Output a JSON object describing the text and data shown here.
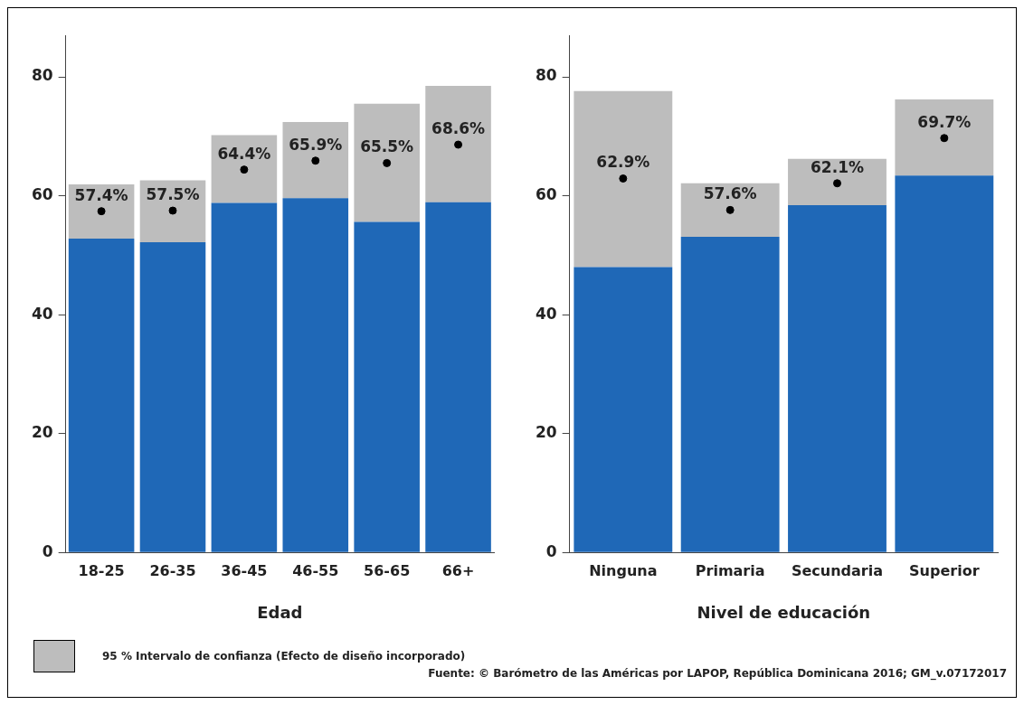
{
  "chart_data": [
    {
      "type": "bar",
      "stacked": true,
      "categories": [
        "18-25",
        "26-35",
        "36-45",
        "46-55",
        "56-65",
        "66+"
      ],
      "xlabel": "Edad",
      "ylim": [
        0,
        87
      ],
      "yticks": [
        0,
        20,
        40,
        60,
        80
      ],
      "grid": false,
      "legend": "bottom left",
      "series": [
        {
          "color": "#1f68b7",
          "values": [
            52.8,
            52.2,
            58.8,
            59.6,
            55.6,
            58.9
          ]
        },
        {
          "name": "95 % Intervalo de confianza (Efecto de diseño incorporado)",
          "color": "#bdbdbd",
          "values": [
            9.1,
            10.4,
            11.4,
            12.8,
            19.9,
            19.6
          ]
        },
        {
          "type": "scatter",
          "color": "#000000",
          "marker": "circle",
          "x": [
            "18-25",
            "26-35",
            "36-45",
            "46-55",
            "56-65",
            "66+"
          ],
          "values": [
            57.4,
            57.5,
            64.4,
            65.9,
            65.5,
            68.6
          ],
          "value_labels": [
            "57.4%",
            "57.5%",
            "64.4%",
            "65.9%",
            "65.5%",
            "68.6%"
          ]
        }
      ]
    },
    {
      "type": "bar",
      "stacked": true,
      "categories": [
        "Ninguna",
        "Primaria",
        "Secundaria",
        "Superior"
      ],
      "xlabel": "Nivel de educación",
      "ylim": [
        0,
        87
      ],
      "yticks": [
        0,
        20,
        40,
        60,
        80
      ],
      "grid": false,
      "annotations": [
        "Fuente: © Barómetro de las Américas por LAPOP, República Dominicana 2016; GM_v.07172017"
      ],
      "series": [
        {
          "color": "#1f68b7",
          "values": [
            48.0,
            53.1,
            58.4,
            63.4
          ]
        },
        {
          "color": "#bdbdbd",
          "values": [
            29.6,
            9.0,
            7.8,
            12.8
          ]
        },
        {
          "type": "scatter",
          "color": "#000000",
          "marker": "circle",
          "x": [
            "Ninguna",
            "Primaria",
            "Secundaria",
            "Superior"
          ],
          "values": [
            62.9,
            57.6,
            62.1,
            69.7
          ],
          "value_labels": [
            "62.9%",
            "57.6%",
            "62.1%",
            "69.7%"
          ]
        }
      ]
    }
  ]
}
